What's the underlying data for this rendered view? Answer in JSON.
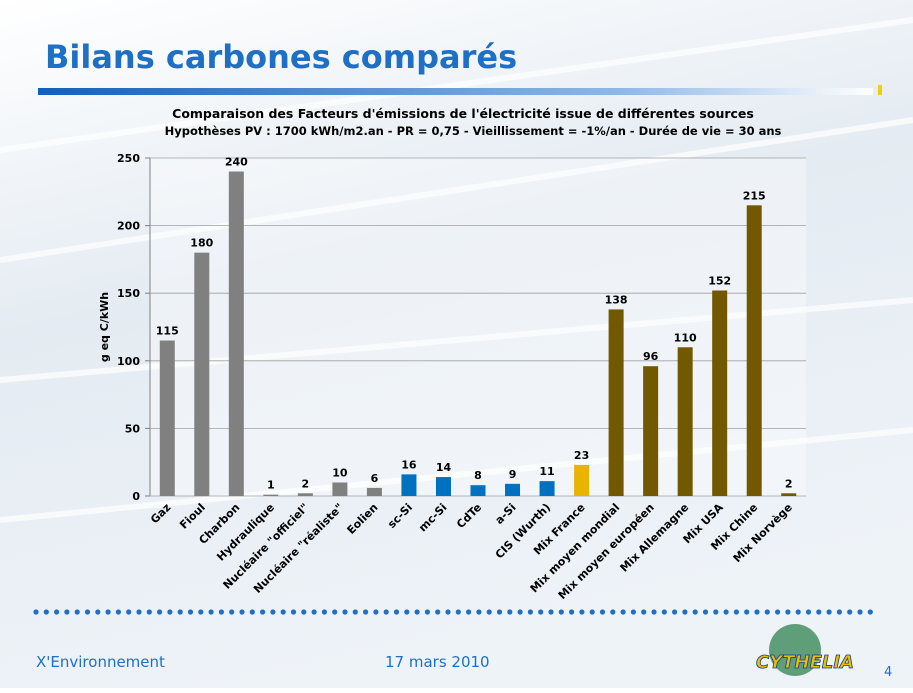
{
  "slide": {
    "title": "Bilans carbones comparés",
    "footer_left": "X'Environnement",
    "footer_date": "17 mars 2010",
    "page": "4",
    "logo": "CYTHELIA"
  },
  "chart_data": {
    "type": "bar",
    "title": "Comparaison des Facteurs d'émissions de l'électricité issue de différentes sources",
    "subtitle": "Hypothèses PV : 1700 kWh/m2.an -  PR = 0,75 - Vieillissement = -1%/an - Durée de vie = 30 ans",
    "ylabel": "g eq C/kWh",
    "categories": [
      "Gaz",
      "Fioul",
      "Charbon",
      "Hydraulique",
      "Nucléaire \"officiel\"",
      "Nucléaire \"réaliste\"",
      "Eolien",
      "sc-Si",
      "mc-Si",
      "CdTe",
      "a-Si",
      "CIS (Wurth)",
      "Mix France",
      "Mix moyen mondial",
      "Mix moyen européen",
      "Mix Allemagne",
      "Mix USA",
      "Mix Chine",
      "Mix Norvège"
    ],
    "values": [
      115,
      180,
      240,
      1,
      2,
      10,
      6,
      16,
      14,
      8,
      9,
      11,
      23,
      138,
      96,
      110,
      152,
      215,
      2
    ],
    "colors": [
      "#808080",
      "#808080",
      "#808080",
      "#808080",
      "#808080",
      "#808080",
      "#808080",
      "#0070c0",
      "#0070c0",
      "#0070c0",
      "#0070c0",
      "#0070c0",
      "#e8b400",
      "#725800",
      "#725800",
      "#725800",
      "#725800",
      "#725800",
      "#725800"
    ],
    "ylim": [
      0,
      250
    ],
    "yticks": [
      0,
      50,
      100,
      150,
      200,
      250
    ],
    "grid": true
  }
}
